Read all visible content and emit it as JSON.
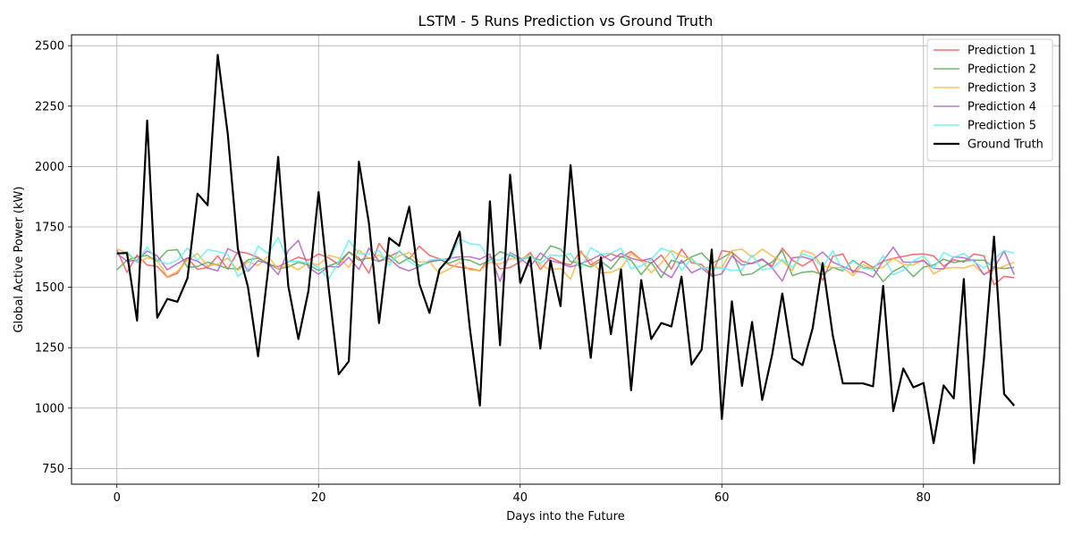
{
  "chart_data": {
    "type": "line",
    "title": "LSTM - 5 Runs Prediction vs Ground Truth",
    "xlabel": "Days into the Future",
    "ylabel": "Global Active Power (kW)",
    "xlim": [
      -4.5,
      93.5
    ],
    "ylim": [
      685,
      2545
    ],
    "xticks": [
      0,
      20,
      40,
      60,
      80
    ],
    "yticks": [
      750,
      1000,
      1250,
      1500,
      1750,
      2000,
      2250,
      2500
    ],
    "grid": true,
    "legend_position": "top-right",
    "x": [
      0,
      1,
      2,
      3,
      4,
      5,
      6,
      7,
      8,
      9,
      10,
      11,
      12,
      13,
      14,
      15,
      16,
      17,
      18,
      19,
      20,
      21,
      22,
      23,
      24,
      25,
      26,
      27,
      28,
      29,
      30,
      31,
      32,
      33,
      34,
      35,
      36,
      37,
      38,
      39,
      40,
      41,
      42,
      43,
      44,
      45,
      46,
      47,
      48,
      49,
      50,
      51,
      52,
      53,
      54,
      55,
      56,
      57,
      58,
      59,
      60,
      61,
      62,
      63,
      64,
      65,
      66,
      67,
      68,
      69,
      70,
      71,
      72,
      73,
      74,
      75,
      76,
      77,
      78,
      79,
      80,
      81,
      82,
      83,
      84,
      85,
      86,
      87,
      88,
      89
    ],
    "series": [
      {
        "name": "Prediction 1",
        "color": "#f05a5a",
        "values": [
          1655,
          1562,
          1633,
          1592,
          1586,
          1542,
          1558,
          1622,
          1574,
          1582,
          1630,
          1575,
          1648,
          1640,
          1624,
          1594,
          1585,
          1605,
          1625,
          1612,
          1638,
          1622,
          1594,
          1646,
          1622,
          1558,
          1682,
          1627,
          1648,
          1618,
          1670,
          1632,
          1618,
          1592,
          1583,
          1578,
          1568,
          1628,
          1576,
          1582,
          1606,
          1644,
          1574,
          1624,
          1604,
          1592,
          1650,
          1592,
          1618,
          1638,
          1624,
          1648,
          1614,
          1600,
          1633,
          1575,
          1658,
          1602,
          1594,
          1550,
          1652,
          1645,
          1608,
          1598,
          1614,
          1588,
          1662,
          1612,
          1588,
          1614,
          1528,
          1628,
          1638,
          1560,
          1608,
          1582,
          1608,
          1620,
          1628,
          1636,
          1638,
          1630,
          1587,
          1614,
          1605,
          1638,
          1630,
          1510,
          1545,
          1540
        ]
      },
      {
        "name": "Prediction 2",
        "color": "#5aaa5a",
        "values": [
          1572,
          1612,
          1625,
          1632,
          1608,
          1652,
          1656,
          1582,
          1586,
          1604,
          1592,
          1578,
          1576,
          1614,
          1620,
          1600,
          1576,
          1584,
          1604,
          1592,
          1570,
          1588,
          1604,
          1646,
          1612,
          1622,
          1606,
          1634,
          1598,
          1622,
          1590,
          1604,
          1614,
          1600,
          1618,
          1612,
          1592,
          1612,
          1648,
          1632,
          1612,
          1626,
          1612,
          1672,
          1658,
          1606,
          1598,
          1584,
          1608,
          1576,
          1628,
          1612,
          1552,
          1604,
          1540,
          1612,
          1600,
          1626,
          1642,
          1598,
          1620,
          1646,
          1550,
          1556,
          1584,
          1604,
          1652,
          1548,
          1562,
          1566,
          1552,
          1582,
          1568,
          1612,
          1582,
          1578,
          1524,
          1566,
          1588,
          1544,
          1584,
          1592,
          1616,
          1602,
          1610,
          1612,
          1612,
          1582,
          1578,
          1582
        ]
      },
      {
        "name": "Prediction 3",
        "color": "#f8b840",
        "values": [
          1660,
          1642,
          1602,
          1622,
          1612,
          1544,
          1566,
          1612,
          1640,
          1588,
          1596,
          1620,
          1570,
          1606,
          1590,
          1628,
          1574,
          1594,
          1572,
          1602,
          1592,
          1632,
          1622,
          1582,
          1654,
          1618,
          1634,
          1604,
          1630,
          1644,
          1604,
          1606,
          1556,
          1576,
          1604,
          1572,
          1570,
          1604,
          1596,
          1618,
          1618,
          1634,
          1592,
          1572,
          1578,
          1534,
          1644,
          1612,
          1560,
          1562,
          1580,
          1640,
          1612,
          1560,
          1600,
          1652,
          1630,
          1614,
          1580,
          1584,
          1582,
          1652,
          1658,
          1624,
          1658,
          1630,
          1608,
          1570,
          1652,
          1640,
          1588,
          1582,
          1582,
          1548,
          1594,
          1576,
          1582,
          1620,
          1594,
          1592,
          1616,
          1556,
          1578,
          1582,
          1580,
          1592,
          1554,
          1572,
          1588,
          1604
        ]
      },
      {
        "name": "Prediction 4",
        "color": "#b060c8",
        "values": [
          1640,
          1608,
          1612,
          1650,
          1630,
          1572,
          1598,
          1622,
          1608,
          1580,
          1568,
          1660,
          1640,
          1566,
          1610,
          1600,
          1552,
          1652,
          1694,
          1582,
          1554,
          1586,
          1584,
          1624,
          1574,
          1662,
          1608,
          1620,
          1582,
          1568,
          1586,
          1608,
          1612,
          1620,
          1626,
          1626,
          1616,
          1638,
          1524,
          1644,
          1620,
          1586,
          1642,
          1610,
          1600,
          1584,
          1598,
          1614,
          1636,
          1610,
          1640,
          1620,
          1610,
          1620,
          1566,
          1540,
          1612,
          1560,
          1580,
          1546,
          1556,
          1630,
          1592,
          1600,
          1618,
          1580,
          1526,
          1622,
          1626,
          1614,
          1646,
          1604,
          1586,
          1568,
          1562,
          1542,
          1610,
          1666,
          1604,
          1604,
          1610,
          1578,
          1576,
          1626,
          1622,
          1612,
          1552,
          1580,
          1650,
          1552
        ]
      },
      {
        "name": "Prediction 5",
        "color": "#60f0f0",
        "values": [
          1636,
          1648,
          1604,
          1666,
          1612,
          1596,
          1612,
          1662,
          1612,
          1656,
          1648,
          1636,
          1546,
          1574,
          1670,
          1640,
          1706,
          1606,
          1608,
          1600,
          1582,
          1534,
          1606,
          1694,
          1640,
          1638,
          1652,
          1590,
          1652,
          1606,
          1582,
          1612,
          1618,
          1612,
          1700,
          1680,
          1676,
          1612,
          1612,
          1640,
          1612,
          1630,
          1598,
          1634,
          1630,
          1640,
          1574,
          1664,
          1638,
          1640,
          1662,
          1578,
          1588,
          1616,
          1662,
          1646,
          1570,
          1620,
          1580,
          1578,
          1580,
          1570,
          1572,
          1634,
          1572,
          1580,
          1614,
          1582,
          1638,
          1624,
          1582,
          1652,
          1570,
          1608,
          1580,
          1572,
          1630,
          1552,
          1570,
          1610,
          1630,
          1578,
          1644,
          1624,
          1640,
          1606,
          1580,
          1616,
          1652,
          1640
        ]
      },
      {
        "name": "Ground Truth",
        "color": "#000000",
        "values": [
          1640,
          1642,
          1362,
          2190,
          1374,
          1452,
          1440,
          1538,
          1888,
          1840,
          2462,
          2132,
          1660,
          1502,
          1214,
          1574,
          2040,
          1506,
          1286,
          1486,
          1894,
          1500,
          1140,
          1194,
          2020,
          1766,
          1352,
          1704,
          1672,
          1834,
          1514,
          1394,
          1574,
          1622,
          1730,
          1332,
          1010,
          1856,
          1260,
          1966,
          1518,
          1624,
          1246,
          1610,
          1422,
          2006,
          1554,
          1208,
          1624,
          1306,
          1574,
          1074,
          1530,
          1286,
          1352,
          1338,
          1544,
          1180,
          1242,
          1656,
          955,
          1442,
          1092,
          1356,
          1034,
          1222,
          1474,
          1206,
          1178,
          1330,
          1600,
          1302,
          1102,
          1102,
          1102,
          1090,
          1506,
          988,
          1164,
          1086,
          1104,
          855,
          1094,
          1040,
          1534,
          772,
          1204,
          1710,
          1058,
          1010
        ]
      }
    ]
  }
}
